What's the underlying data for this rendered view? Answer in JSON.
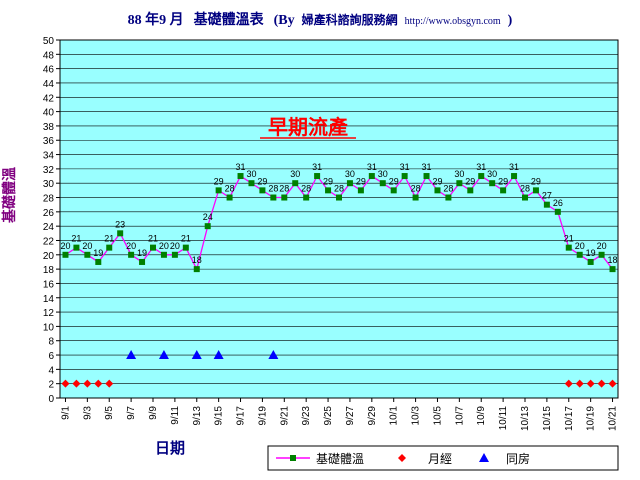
{
  "title": {
    "prefix": "88 年9 月",
    "main": "基礎體溫表",
    "by_open": "(By",
    "org": "婦產科諮詢服務網",
    "url": "http://www.obsgyn.com",
    "close": ")"
  },
  "annotation": "早期流產",
  "colors": {
    "plot_bg": "#99ffff",
    "temp_line": "#ff00ff",
    "temp_marker": "#008000",
    "period_marker": "#ff0000",
    "intercourse_marker": "#0000ff",
    "title": "#000080",
    "ylabel": "#800080"
  },
  "chart_data": {
    "type": "line",
    "title": "88 年9 月 基礎體溫表 (By 婦產科諮詢服務網 http://www.obsgyn.com )",
    "xlabel": "日期",
    "ylabel": "基礎體溫",
    "ylim": [
      0,
      50
    ],
    "ytick_step": 2,
    "grid": true,
    "legend_position": "bottom-right",
    "x_labels": [
      "9/1",
      "9/3",
      "9/5",
      "9/7",
      "9/9",
      "9/11",
      "9/13",
      "9/15",
      "9/17",
      "9/19",
      "9/21",
      "9/23",
      "9/25",
      "9/27",
      "9/29",
      "10/1",
      "10/3",
      "10/5",
      "10/7",
      "10/9",
      "10/11",
      "10/13",
      "10/15",
      "10/17",
      "10/19",
      "10/21"
    ],
    "series": [
      {
        "name": "基礎體溫",
        "marker": "square",
        "values": [
          20,
          21,
          20,
          19,
          21,
          23,
          20,
          19,
          21,
          20,
          20,
          21,
          18,
          24,
          29,
          28,
          31,
          30,
          29,
          28,
          28,
          30,
          28,
          31,
          29,
          28,
          30,
          29,
          31,
          30,
          29,
          31,
          28,
          31,
          29,
          28,
          30,
          29,
          31,
          30,
          29,
          31,
          28,
          29,
          27,
          26,
          21,
          20,
          19,
          20,
          18
        ]
      },
      {
        "name": "月經",
        "marker": "diamond",
        "days": [
          0,
          1,
          2,
          3,
          4,
          46,
          47,
          48,
          49,
          50
        ],
        "value": 2
      },
      {
        "name": "同房",
        "marker": "triangle",
        "days": [
          6,
          9,
          12,
          14,
          19
        ],
        "value": 6
      }
    ]
  }
}
